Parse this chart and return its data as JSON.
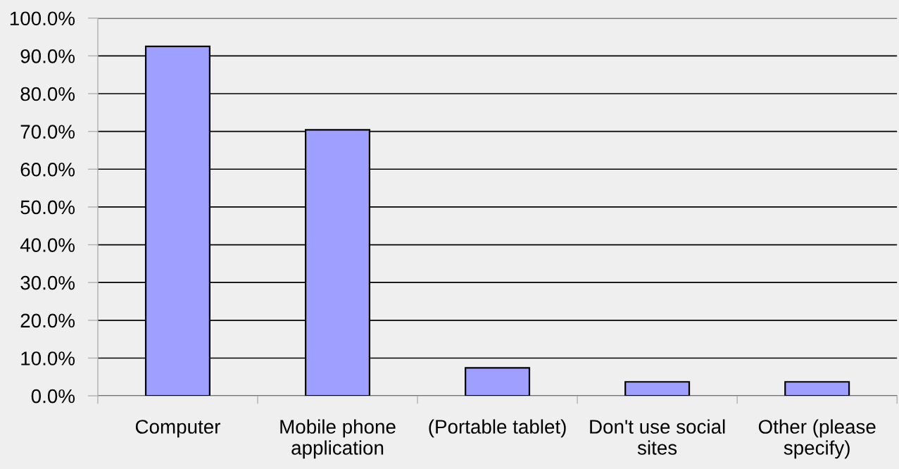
{
  "chart_data": {
    "type": "bar",
    "categories": [
      "Computer",
      "Mobile phone application",
      "(Portable tablet)",
      "Don't use social sites",
      "Other (please specify)"
    ],
    "values": [
      92.5,
      70.4,
      7.4,
      3.7,
      3.7
    ],
    "color": "#9f9fff",
    "ylim": [
      0,
      100
    ],
    "yticks": [
      {
        "value": 0,
        "label": "0.0%"
      },
      {
        "value": 10,
        "label": "10.0%"
      },
      {
        "value": 20,
        "label": "20.0%"
      },
      {
        "value": 30,
        "label": "30.0%"
      },
      {
        "value": 40,
        "label": "40.0%"
      },
      {
        "value": 50,
        "label": "50.0%"
      },
      {
        "value": 60,
        "label": "60.0%"
      },
      {
        "value": 70,
        "label": "70.0%"
      },
      {
        "value": 80,
        "label": "80.0%"
      },
      {
        "value": 90,
        "label": "90.0%"
      },
      {
        "value": 100,
        "label": "100.0%"
      }
    ],
    "grid": "y"
  }
}
